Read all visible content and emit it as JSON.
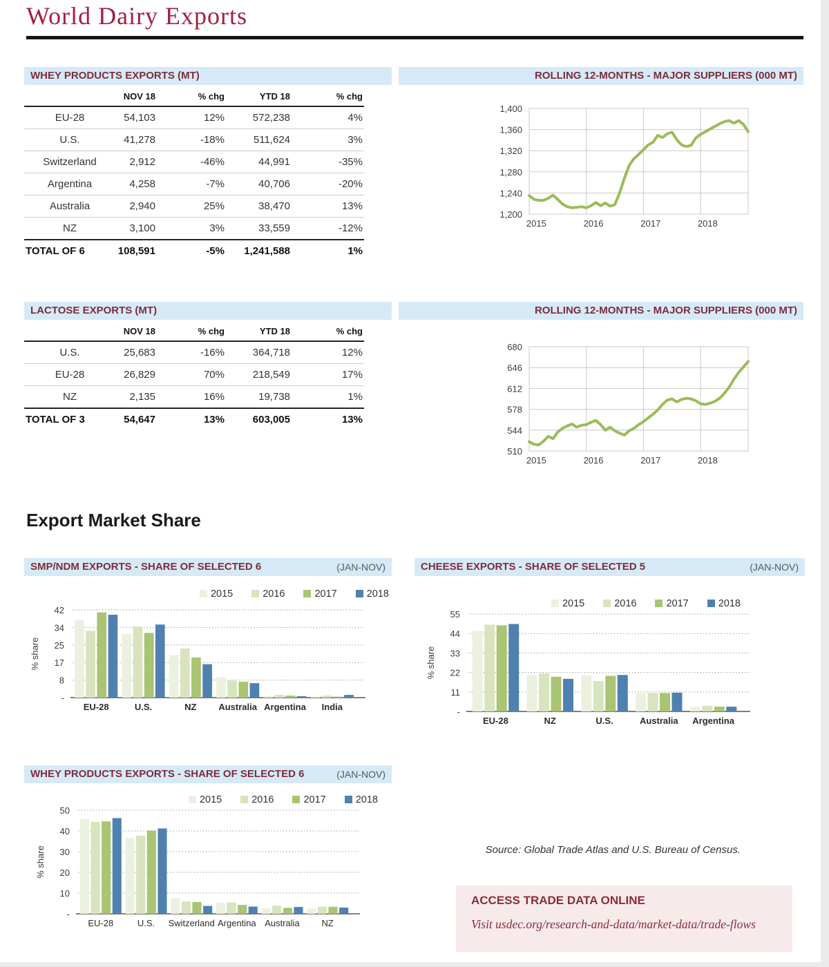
{
  "page": {
    "title": "World Dairy Exports"
  },
  "sections": {
    "market_share_heading": "Export Market Share",
    "source_note": "Source: Global Trade Atlas and U.S. Bureau of Census.",
    "access": {
      "title": "ACCESS TRADE DATA ONLINE",
      "link": "Visit usdec.org/research-and-data/market-data/trade-flows"
    }
  },
  "tables": [
    {
      "id": "whey-exports",
      "title": "WHEY PRODUCTS EXPORTS (MT)",
      "columns": [
        "",
        "NOV 18",
        "% chg",
        "YTD 18",
        "% chg"
      ],
      "rows": [
        [
          "EU-28",
          "54,103",
          "12%",
          "572,238",
          "4%"
        ],
        [
          "U.S.",
          "41,278",
          "-18%",
          "511,624",
          "3%"
        ],
        [
          "Switzerland",
          "2,912",
          "-46%",
          "44,991",
          "-35%"
        ],
        [
          "Argentina",
          "4,258",
          "-7%",
          "40,706",
          "-20%"
        ],
        [
          "Australia",
          "2,940",
          "25%",
          "38,470",
          "13%"
        ],
        [
          "NZ",
          "3,100",
          "3%",
          "33,559",
          "-12%"
        ]
      ],
      "total": [
        "TOTAL OF 6",
        "108,591",
        "-5%",
        "1,241,588",
        "1%"
      ]
    },
    {
      "id": "lactose-exports",
      "title": "LACTOSE EXPORTS (MT)",
      "columns": [
        "",
        "NOV 18",
        "% chg",
        "YTD 18",
        "% chg"
      ],
      "rows": [
        [
          "U.S.",
          "25,683",
          "-16%",
          "364,718",
          "12%"
        ],
        [
          "EU-28",
          "26,829",
          "70%",
          "218,549",
          "17%"
        ],
        [
          "NZ",
          "2,135",
          "16%",
          "19,738",
          "1%"
        ]
      ],
      "total": [
        "TOTAL OF 3",
        "54,647",
        "13%",
        "603,005",
        "13%"
      ]
    }
  ],
  "chart_data": [
    {
      "id": "whey-rolling",
      "type": "line",
      "title": "ROLLING 12-MONTHS - MAJOR SUPPLIERS (000 MT)",
      "ylim": [
        1200,
        1400
      ],
      "yticks": [
        1200,
        1240,
        1280,
        1320,
        1360,
        1400
      ],
      "ytick_labels": [
        "1,200",
        "1,240",
        "1,280",
        "1,320",
        "1,360",
        "1,400"
      ],
      "x_year_labels": [
        "2015",
        "2016",
        "2017",
        "2018"
      ],
      "year_start_indices": [
        0,
        12,
        24,
        36
      ],
      "line_color": "#9bbb59",
      "values": [
        1235,
        1228,
        1226,
        1226,
        1230,
        1236,
        1228,
        1219,
        1214,
        1212,
        1213,
        1214,
        1212,
        1216,
        1222,
        1216,
        1221,
        1215,
        1218,
        1240,
        1268,
        1292,
        1305,
        1313,
        1322,
        1331,
        1336,
        1349,
        1345,
        1352,
        1355,
        1341,
        1331,
        1328,
        1330,
        1344,
        1351,
        1356,
        1361,
        1366,
        1371,
        1375,
        1377,
        1372,
        1377,
        1370,
        1356
      ]
    },
    {
      "id": "lactose-rolling",
      "type": "line",
      "title": "ROLLING 12-MONTHS - MAJOR SUPPLIERS (000 MT)",
      "ylim": [
        510,
        680
      ],
      "yticks": [
        510,
        544,
        578,
        612,
        646,
        680
      ],
      "ytick_labels": [
        "510",
        "544",
        "578",
        "612",
        "646",
        "680"
      ],
      "x_year_labels": [
        "2015",
        "2016",
        "2017",
        "2018"
      ],
      "year_start_indices": [
        0,
        12,
        24,
        36
      ],
      "line_color": "#9bbb59",
      "values": [
        525,
        521,
        520,
        526,
        534,
        530,
        541,
        547,
        551,
        554,
        549,
        552,
        553,
        557,
        560,
        553,
        544,
        549,
        543,
        539,
        536,
        543,
        547,
        553,
        558,
        564,
        570,
        577,
        586,
        593,
        595,
        590,
        594,
        596,
        595,
        592,
        587,
        586,
        588,
        591,
        596,
        604,
        614,
        627,
        638,
        647,
        656
      ]
    },
    {
      "id": "smp-share",
      "type": "bar",
      "title": "SMP/NDM EXPORTS - SHARE OF SELECTED 6",
      "period": "(JAN-NOV)",
      "ylabel": "% share",
      "ylim": [
        0,
        42
      ],
      "ytick_values": [
        0,
        8.4,
        16.8,
        25.2,
        33.6,
        42
      ],
      "ytick_labels": [
        "-",
        "8",
        "17",
        "25",
        "34",
        "42"
      ],
      "categories": [
        "EU-28",
        "U.S.",
        "NZ",
        "Australia",
        "Argentina",
        "India"
      ],
      "series": [
        {
          "name": "2015",
          "color": "#ebf1de",
          "values": [
            37.0,
            30.5,
            20.3,
            9.7,
            0.8,
            0.6
          ]
        },
        {
          "name": "2016",
          "color": "#d7e4bd",
          "values": [
            32.0,
            34.0,
            23.5,
            8.1,
            1.3,
            1.0
          ]
        },
        {
          "name": "2017",
          "color": "#a9c472",
          "values": [
            40.8,
            31.0,
            19.2,
            7.6,
            1.0,
            0.5
          ]
        },
        {
          "name": "2018",
          "color": "#4f81b0",
          "values": [
            39.7,
            35.0,
            16.0,
            6.9,
            0.7,
            1.3
          ]
        }
      ]
    },
    {
      "id": "cheese-share",
      "type": "bar",
      "title": "CHEESE EXPORTS - SHARE OF SELECTED 5",
      "period": "(JAN-NOV)",
      "ylabel": "% share",
      "ylim": [
        0,
        55
      ],
      "ytick_values": [
        0,
        11,
        22,
        33,
        44,
        55
      ],
      "ytick_labels": [
        "-",
        "11",
        "22",
        "33",
        "44",
        "55"
      ],
      "categories": [
        "EU-28",
        "NZ",
        "U.S.",
        "Australia",
        "Argentina"
      ],
      "series": [
        {
          "name": "2015",
          "color": "#ebf1de",
          "values": [
            45.5,
            20.6,
            20.4,
            10.3,
            2.6
          ]
        },
        {
          "name": "2016",
          "color": "#d7e4bd",
          "values": [
            49.0,
            21.4,
            17.2,
            10.4,
            3.2
          ]
        },
        {
          "name": "2017",
          "color": "#a9c472",
          "values": [
            48.6,
            19.6,
            20.1,
            10.4,
            2.7
          ]
        },
        {
          "name": "2018",
          "color": "#4f81b0",
          "values": [
            49.4,
            18.4,
            20.6,
            10.6,
            2.7
          ]
        }
      ]
    },
    {
      "id": "whey-share",
      "type": "bar",
      "title": "WHEY PRODUCTS EXPORTS - SHARE OF SELECTED 6",
      "period": "(JAN-NOV)",
      "ylabel": "% share",
      "ylim": [
        0,
        50
      ],
      "ytick_values": [
        0,
        10,
        20,
        30,
        40,
        50
      ],
      "ytick_labels": [
        "-",
        "10",
        "20",
        "30",
        "40",
        "50"
      ],
      "categories": [
        "EU-28",
        "U.S.",
        "Switzerland",
        "Argentina",
        "Australia",
        "NZ"
      ],
      "series": [
        {
          "name": "2015",
          "color": "#ebf1de",
          "values": [
            45.7,
            36.6,
            7.6,
            5.4,
            2.6,
            2.6
          ]
        },
        {
          "name": "2016",
          "color": "#d7e4bd",
          "values": [
            44.4,
            37.7,
            6.0,
            5.5,
            3.9,
            3.4
          ]
        },
        {
          "name": "2017",
          "color": "#a9c472",
          "values": [
            44.6,
            40.2,
            5.7,
            4.3,
            2.9,
            3.4
          ]
        },
        {
          "name": "2018",
          "color": "#4f81b0",
          "values": [
            46.2,
            41.2,
            3.8,
            3.5,
            3.3,
            3.0
          ]
        }
      ]
    }
  ]
}
